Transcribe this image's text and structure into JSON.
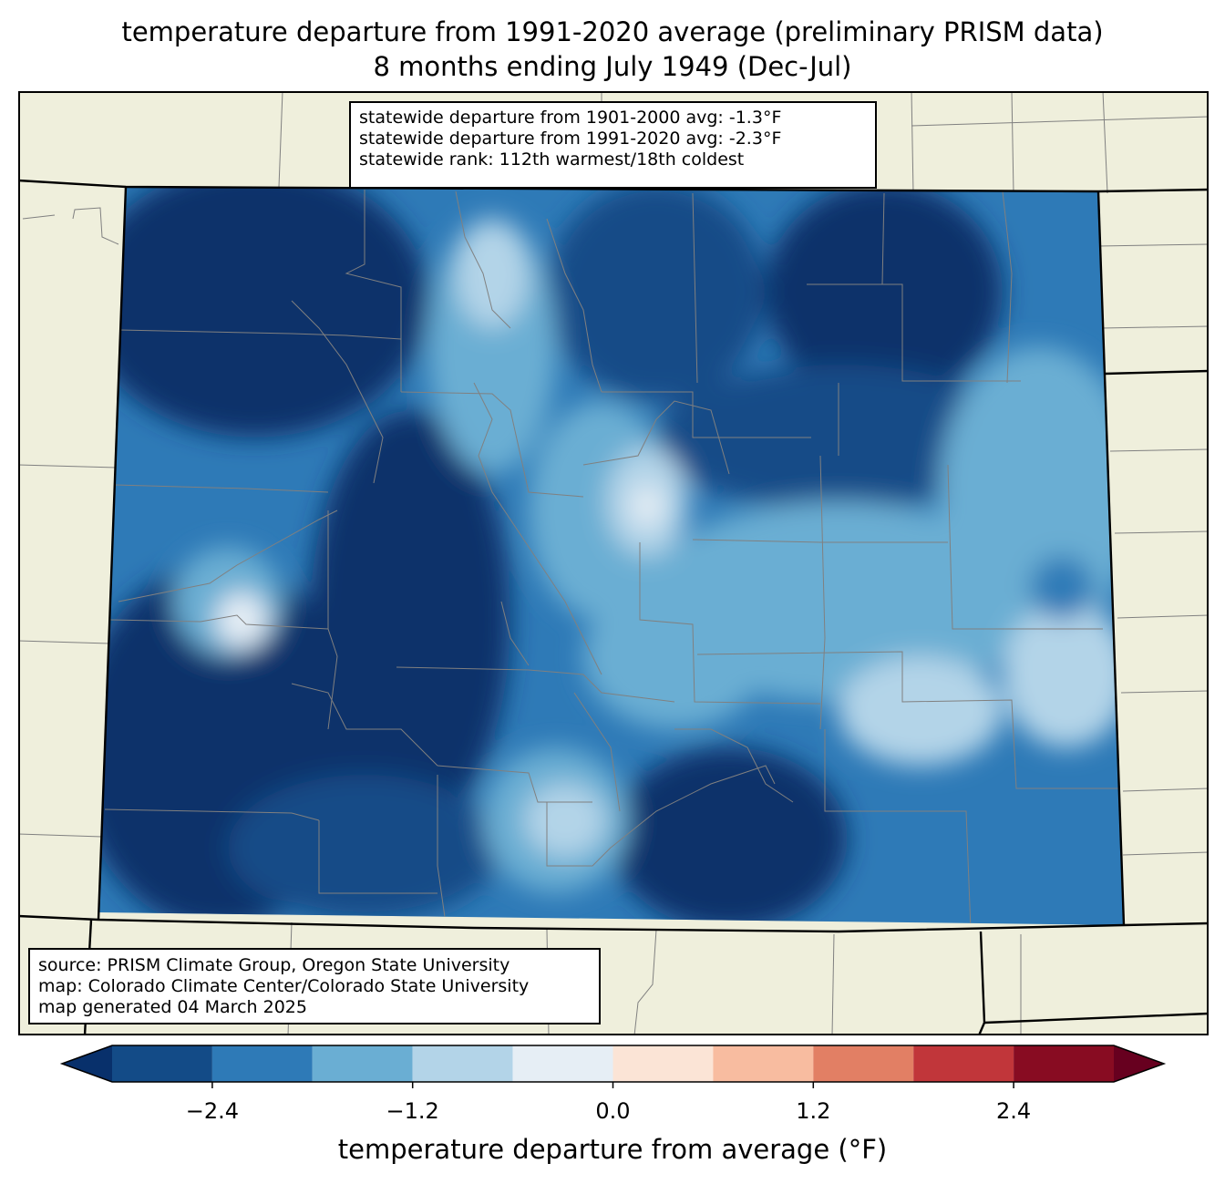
{
  "title": {
    "line1": "temperature departure from 1991-2020 average (preliminary PRISM data)",
    "line2": "8 months ending July 1949 (Dec-Jul)"
  },
  "stats": {
    "line1": "statewide departure from 1901-2000 avg: -1.3°F",
    "line2": "statewide departure from 1991-2020 avg: -2.3°F",
    "line3": "statewide rank: 112th warmest/18th coldest"
  },
  "credits": {
    "line1": "source: PRISM Climate Group, Oregon State University",
    "line2": "map: Colorado Climate Center/Colorado State University",
    "line3": "map generated 04 March 2025"
  },
  "colorbar": {
    "label": "temperature departure from average (°F)",
    "ticks": [
      "−2.4",
      "−1.2",
      "0.0",
      "1.2",
      "2.4"
    ],
    "tick_values": [
      -2.4,
      -1.2,
      0.0,
      1.2,
      2.4
    ],
    "bins": [
      -3.0,
      -2.4,
      -1.8,
      -1.2,
      -0.6,
      0.0,
      0.6,
      1.2,
      1.8,
      2.4,
      3.0
    ],
    "colors": [
      "#08306b",
      "#134b87",
      "#2e7ab7",
      "#6aaed3",
      "#b3d4e8",
      "#e6eef5",
      "#fbe4d6",
      "#f8bca0",
      "#e27f64",
      "#c1363a",
      "#880c22",
      "#67001f"
    ]
  },
  "colors": {
    "land": "#efefdc",
    "state_border": "#000000",
    "county_border": "#808080"
  }
}
